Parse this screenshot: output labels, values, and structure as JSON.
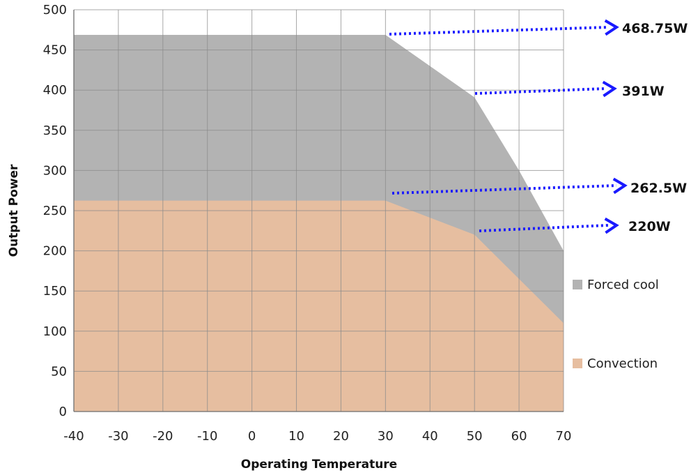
{
  "chart_data": {
    "type": "area",
    "title": "",
    "xlabel": "Operating Temperature",
    "ylabel": "Output Power",
    "xlim": [
      -40,
      70
    ],
    "ylim": [
      0,
      500
    ],
    "xticks": [
      -40,
      -30,
      -20,
      -10,
      0,
      10,
      20,
      30,
      40,
      50,
      60,
      70
    ],
    "yticks": [
      0,
      50,
      100,
      150,
      200,
      250,
      300,
      350,
      400,
      450,
      500
    ],
    "grid": true,
    "legend_position": "right",
    "series": [
      {
        "name": "Forced cool",
        "color": "#b3b3b3",
        "points": [
          [
            -40,
            468.75
          ],
          [
            30,
            468.75
          ],
          [
            50,
            391
          ],
          [
            60,
            300
          ],
          [
            70,
            200
          ]
        ]
      },
      {
        "name": "Convection",
        "color": "#e6bea0",
        "points": [
          [
            -40,
            262.5
          ],
          [
            30,
            262.5
          ],
          [
            50,
            220
          ],
          [
            60,
            165
          ],
          [
            70,
            110
          ]
        ]
      }
    ],
    "annotations": [
      {
        "text": "468.75W",
        "x": 30,
        "y": 468.75
      },
      {
        "text": "391W",
        "x": 50,
        "y": 391
      },
      {
        "text": "262.5W",
        "x": 30,
        "y": 262.5
      },
      {
        "text": "220W",
        "x": 50,
        "y": 220
      }
    ],
    "annotation_color": "#1a1aff"
  }
}
